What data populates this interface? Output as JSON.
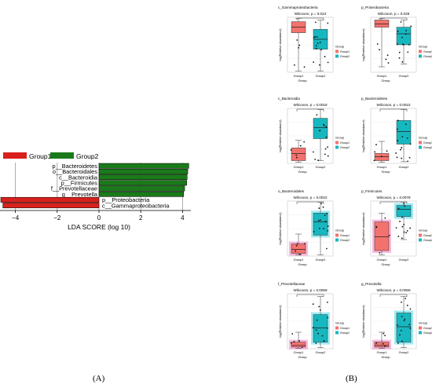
{
  "panel_labels": {
    "a": "(A)",
    "b": "(B)"
  },
  "colors": {
    "group1": "#d8201c",
    "group2": "#1a7a1a",
    "box_red": "#f4726d",
    "box_teal": "#17b7bf",
    "pink_hl": "#f7a8d4",
    "cyan_hl": "#86e6f0"
  },
  "chart_data": [
    {
      "type": "bar",
      "orientation": "horizontal",
      "xlabel": "LDA SCORE (log 10)",
      "xlim": [
        -5,
        4.5
      ],
      "xticks": [
        -4,
        -2,
        0,
        2,
        4
      ],
      "xtick_labels": [
        "−4",
        "−2",
        "0",
        "2",
        "4"
      ],
      "grid": true,
      "legend": {
        "position": "top-left",
        "entries": [
          {
            "name": "Group1",
            "color": "#d8201c"
          },
          {
            "name": "Group2",
            "color": "#1a7a1a"
          }
        ]
      },
      "categories": [
        "p__Bacteroidetes",
        "o__Bacteroidales",
        "c__Bacteroidia",
        "p__Firmicutes",
        "f__Prevotellaceae",
        "g__Prevotella",
        "p__Proteobacteria",
        "c__Gammaproteobacteria"
      ],
      "values": [
        4.3,
        4.25,
        4.22,
        4.2,
        4.1,
        4.05,
        -4.7,
        -4.6
      ],
      "groups": [
        "Group2",
        "Group2",
        "Group2",
        "Group2",
        "Group2",
        "Group2",
        "Group1",
        "Group1"
      ]
    },
    {
      "type": "box",
      "panels": [
        {
          "title": "c_Gammaproteobacteria",
          "stat": "Wilcoxon, p = 0.024",
          "xlabel": "Group",
          "ylabel": "log(Relative abundance)",
          "groups": [
            "Group1",
            "Group2"
          ],
          "legend_title": "Group",
          "legend": [
            "Group1",
            "Group2"
          ],
          "boxes": [
            {
              "q1": 0.72,
              "median": 0.82,
              "q3": 0.92,
              "lo": 0.02,
              "hi": 0.98
            },
            {
              "q1": 0.42,
              "median": 0.6,
              "q3": 0.78,
              "lo": 0.02,
              "hi": 0.95
            }
          ],
          "highlight": false
        },
        {
          "title": "p_Proteobacteria",
          "stat": "Wilcoxon, p = 0.028",
          "xlabel": "Group",
          "ylabel": "log(Relative abundance)",
          "groups": [
            "Group1",
            "Group2"
          ],
          "legend_title": "Group",
          "legend": [
            "Group1",
            "Group2"
          ],
          "boxes": [
            {
              "q1": 0.82,
              "median": 0.88,
              "q3": 0.95,
              "lo": 0.1,
              "hi": 0.98
            },
            {
              "q1": 0.5,
              "median": 0.7,
              "q3": 0.82,
              "lo": 0.15,
              "hi": 0.95
            }
          ],
          "highlight": false
        },
        {
          "title": "c_Bacteroidia",
          "stat": "Wilcoxon, p = 0.0018",
          "xlabel": "Group",
          "ylabel": "log(Relative abundance)",
          "groups": [
            "Group1",
            "Group2"
          ],
          "legend_title": "Group",
          "legend": [
            "Group1",
            "Group2"
          ],
          "boxes": [
            {
              "q1": 0.05,
              "median": 0.18,
              "q3": 0.28,
              "lo": 0.02,
              "hi": 0.42
            },
            {
              "q1": 0.45,
              "median": 0.65,
              "q3": 0.82,
              "lo": 0.05,
              "hi": 0.98
            }
          ],
          "highlight": false
        },
        {
          "title": "p_Bacteroidetes",
          "stat": "Wilcoxon, p = 0.0022",
          "xlabel": "Group",
          "ylabel": "log(Relative abundance)",
          "groups": [
            "Group1",
            "Group2"
          ],
          "legend_title": "Group",
          "legend": [
            "Group1",
            "Group2"
          ],
          "boxes": [
            {
              "q1": 0.05,
              "median": 0.12,
              "q3": 0.18,
              "lo": 0.02,
              "hi": 0.4
            },
            {
              "q1": 0.35,
              "median": 0.58,
              "q3": 0.78,
              "lo": 0.03,
              "hi": 0.98
            }
          ],
          "highlight": false
        },
        {
          "title": "o_Bacteroidales",
          "stat": "Wilcoxon, p = 0.0022",
          "xlabel": "Group",
          "ylabel": "log(Relative abundance)",
          "groups": [
            "Group1",
            "Group2"
          ],
          "legend_title": "Group",
          "legend": [
            "Group1",
            "Group2"
          ],
          "boxes": [
            {
              "q1": 0.05,
              "median": 0.12,
              "q3": 0.22,
              "lo": 0.02,
              "hi": 0.4
            },
            {
              "q1": 0.38,
              "median": 0.62,
              "q3": 0.78,
              "lo": 0.02,
              "hi": 0.98
            }
          ],
          "highlight": true
        },
        {
          "title": "p_Firmicutes",
          "stat": "Wilcoxon, p = 0.0078",
          "xlabel": "Group",
          "ylabel": "log(Relative abundance)",
          "groups": [
            "Group1",
            "Group2"
          ],
          "legend_title": "Group",
          "legend": [
            "Group1",
            "Group2"
          ],
          "boxes": [
            {
              "q1": 0.1,
              "median": 0.35,
              "q3": 0.62,
              "lo": 0.02,
              "hi": 0.78
            },
            {
              "q1": 0.72,
              "median": 0.85,
              "q3": 0.92,
              "lo": 0.3,
              "hi": 0.98
            }
          ],
          "highlight": true
        },
        {
          "title": "f_Prevotellaceae",
          "stat": "Wilcoxon, p = 0.0069",
          "xlabel": "Group",
          "ylabel": "log(Relative abundance)",
          "groups": [
            "Group1",
            "Group2"
          ],
          "legend_title": "Group",
          "legend": [
            "Group1",
            "Group2"
          ],
          "boxes": [
            {
              "q1": 0.03,
              "median": 0.06,
              "q3": 0.12,
              "lo": 0.01,
              "hi": 0.3
            },
            {
              "q1": 0.12,
              "median": 0.38,
              "q3": 0.62,
              "lo": 0.02,
              "hi": 0.95
            }
          ],
          "highlight": true
        },
        {
          "title": "g_Prevotella",
          "stat": "Wilcoxon, p = 0.0069",
          "xlabel": "Group",
          "ylabel": "log(Relative abundance)",
          "groups": [
            "Group1",
            "Group2"
          ],
          "legend_title": "Group",
          "legend": [
            "Group1",
            "Group2"
          ],
          "boxes": [
            {
              "q1": 0.03,
              "median": 0.06,
              "q3": 0.12,
              "lo": 0.01,
              "hi": 0.3
            },
            {
              "q1": 0.12,
              "median": 0.4,
              "q3": 0.65,
              "lo": 0.02,
              "hi": 0.95
            }
          ],
          "highlight": true
        }
      ]
    }
  ]
}
